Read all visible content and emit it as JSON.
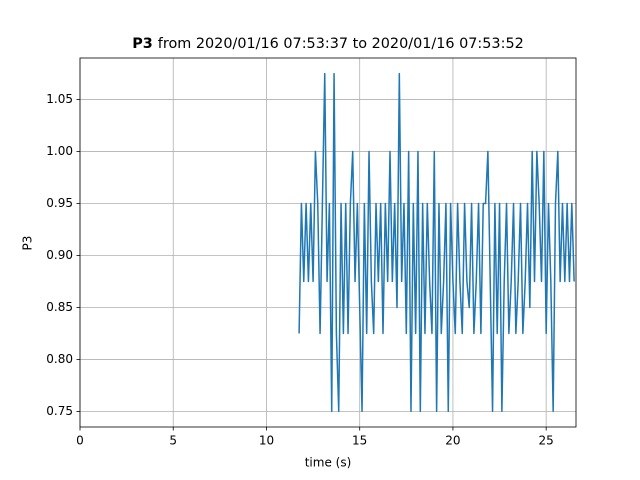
{
  "chart_data": {
    "type": "line",
    "title": {
      "bold": "P3",
      "text": "from 2020/01/16 07:53:37 to 2020/01/16 07:53:52"
    },
    "xlabel": "time (s)",
    "ylabel": "P3",
    "xlim": [
      0,
      26.6
    ],
    "xticks": [
      0,
      5,
      10,
      15,
      20,
      25
    ],
    "ylim": [
      0.735,
      1.09
    ],
    "yticks": [
      0.75,
      {
        "value": 0.8,
        "label": "0.80"
      },
      0.85,
      {
        "value": 0.9,
        "label": "0.90"
      },
      0.95,
      {
        "value": 1.0,
        "label": "1.00"
      },
      1.05
    ],
    "grid": true,
    "x": [
      11.75,
      11.875,
      12,
      12.125,
      12.25,
      12.375,
      12.5,
      12.625,
      12.75,
      12.875,
      13,
      13.125,
      13.25,
      13.375,
      13.5,
      13.625,
      13.75,
      13.875,
      14,
      14.125,
      14.25,
      14.375,
      14.5,
      14.625,
      14.75,
      14.875,
      15,
      15.125,
      15.25,
      15.375,
      15.5,
      15.625,
      15.75,
      15.875,
      16,
      16.125,
      16.25,
      16.375,
      16.5,
      16.625,
      16.75,
      16.875,
      17,
      17.125,
      17.25,
      17.375,
      17.5,
      17.625,
      17.75,
      17.875,
      18,
      18.125,
      18.25,
      18.375,
      18.5,
      18.625,
      18.75,
      18.875,
      19,
      19.125,
      19.25,
      19.375,
      19.5,
      19.625,
      19.75,
      19.875,
      20,
      20.125,
      20.25,
      20.375,
      20.5,
      20.625,
      20.75,
      20.875,
      21,
      21.125,
      21.25,
      21.375,
      21.5,
      21.625,
      21.75,
      21.875,
      22,
      22.125,
      22.25,
      22.375,
      22.5,
      22.625,
      22.75,
      22.875,
      23,
      23.125,
      23.25,
      23.375,
      23.5,
      23.625,
      23.75,
      23.875,
      24,
      24.125,
      24.25,
      24.375,
      24.5,
      24.625,
      24.75,
      24.875,
      25,
      25.125,
      25.25,
      25.375,
      25.5,
      25.625,
      25.75,
      25.875,
      26,
      26.125,
      26.25,
      26.375,
      26.5
    ],
    "series": [
      {
        "color": "#1f77b4",
        "values": [
          0.825,
          0.95,
          0.875,
          0.95,
          0.875,
          0.95,
          0.875,
          1.0,
          0.95,
          0.825,
          0.95,
          1.075,
          0.875,
          0.95,
          0.75,
          1.075,
          0.825,
          0.75,
          0.95,
          0.825,
          0.95,
          0.825,
          0.95,
          1.0,
          0.875,
          0.95,
          0.85,
          0.75,
          0.95,
          0.825,
          1.0,
          0.875,
          0.825,
          0.95,
          0.875,
          0.95,
          0.825,
          0.95,
          0.875,
          1.0,
          0.875,
          0.95,
          0.85,
          1.075,
          0.875,
          0.95,
          0.825,
          1.0,
          0.75,
          0.95,
          0.825,
          1.0,
          0.75,
          0.95,
          0.825,
          0.95,
          0.875,
          0.825,
          1.0,
          0.75,
          0.95,
          0.825,
          0.875,
          0.95,
          0.75,
          0.95,
          0.875,
          0.825,
          0.95,
          0.875,
          0.825,
          0.95,
          0.875,
          0.85,
          0.95,
          0.825,
          0.875,
          0.95,
          0.825,
          0.95,
          0.95,
          1.0,
          0.875,
          0.75,
          0.95,
          0.825,
          0.95,
          0.75,
          0.875,
          0.95,
          0.825,
          0.875,
          0.95,
          0.825,
          0.875,
          0.95,
          0.825,
          0.875,
          0.95,
          0.85,
          1.0,
          0.875,
          1.0,
          0.95,
          0.875,
          1.0,
          0.825,
          0.95,
          0.875,
          0.75,
          0.95,
          1.0,
          0.875,
          0.95,
          0.875,
          0.95,
          0.875,
          0.95,
          0.875
        ]
      }
    ]
  }
}
